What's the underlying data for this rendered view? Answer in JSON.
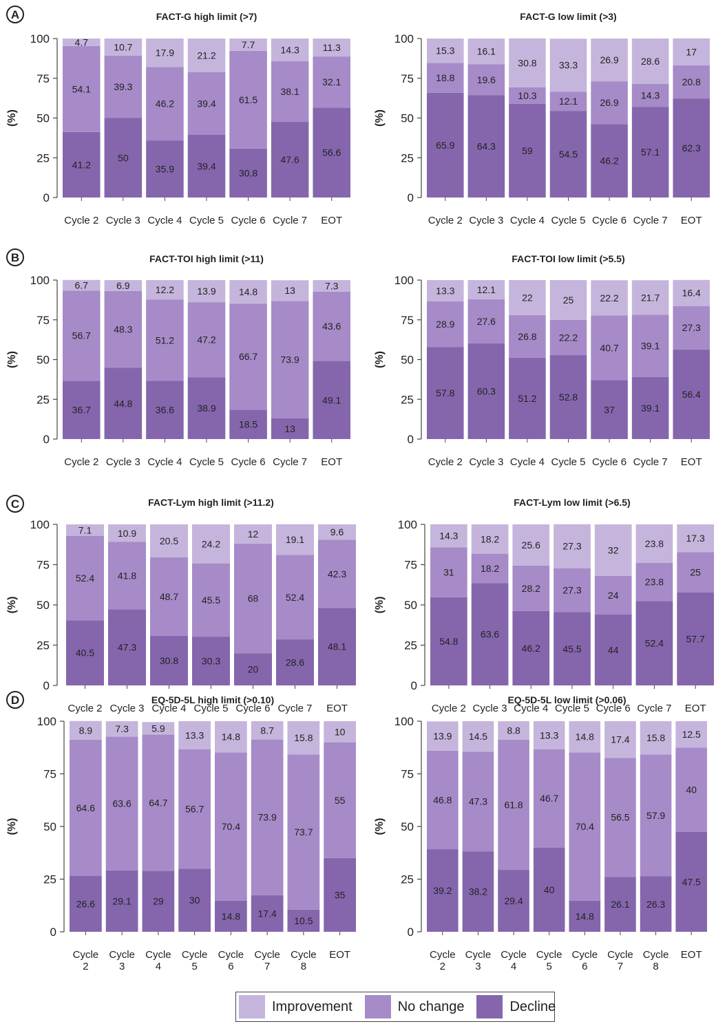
{
  "colors": {
    "improvement": "#c5b5dc",
    "no_change": "#a68bc8",
    "decline": "#8566ad",
    "axis": "#444444",
    "text": "#222222"
  },
  "panels": [
    {
      "label": "A"
    },
    {
      "label": "B"
    },
    {
      "label": "C"
    },
    {
      "label": "D"
    }
  ],
  "legend": {
    "items": [
      {
        "label": "Improvement",
        "color": "#c5b5dc"
      },
      {
        "label": "No change",
        "color": "#a68bc8"
      },
      {
        "label": "Decline",
        "color": "#8566ad"
      }
    ]
  },
  "chart_data": [
    {
      "type": "bar",
      "stacked": true,
      "panel": "A",
      "title": "FACT-G high limit (>7)",
      "ylabel": "(%)",
      "ylim": [
        0,
        100
      ],
      "yticks": [
        0,
        25,
        50,
        75,
        100
      ],
      "categories": [
        "Cycle 2",
        "Cycle 3",
        "Cycle 4",
        "Cycle 5",
        "Cycle 6",
        "Cycle 7",
        "EOT"
      ],
      "series": [
        {
          "name": "Decline",
          "values": [
            41.2,
            50,
            35.9,
            39.4,
            30.8,
            47.6,
            56.6
          ]
        },
        {
          "name": "No change",
          "values": [
            54.1,
            39.3,
            46.2,
            39.4,
            61.5,
            38.1,
            32.1
          ]
        },
        {
          "name": "Improvement",
          "values": [
            4.7,
            10.7,
            17.9,
            21.2,
            7.7,
            14.3,
            11.3
          ]
        }
      ]
    },
    {
      "type": "bar",
      "stacked": true,
      "panel": "A",
      "title": "FACT-G low limit (>3)",
      "ylabel": "(%)",
      "ylim": [
        0,
        100
      ],
      "yticks": [
        0,
        25,
        50,
        75,
        100
      ],
      "categories": [
        "Cycle 2",
        "Cycle 3",
        "Cycle 4",
        "Cycle 5",
        "Cycle 6",
        "Cycle 7",
        "EOT"
      ],
      "series": [
        {
          "name": "Decline",
          "values": [
            65.9,
            64.3,
            59,
            54.5,
            46.2,
            57.1,
            62.3
          ]
        },
        {
          "name": "No change",
          "values": [
            18.8,
            19.6,
            10.3,
            12.1,
            26.9,
            14.3,
            20.8
          ]
        },
        {
          "name": "Improvement",
          "values": [
            15.3,
            16.1,
            30.8,
            33.3,
            26.9,
            28.6,
            17
          ]
        }
      ]
    },
    {
      "type": "bar",
      "stacked": true,
      "panel": "B",
      "title": "FACT-TOI high limit (>11)",
      "ylabel": "(%)",
      "ylim": [
        0,
        100
      ],
      "yticks": [
        0,
        25,
        50,
        75,
        100
      ],
      "categories": [
        "Cycle 2",
        "Cycle 3",
        "Cycle 4",
        "Cycle 5",
        "Cycle 6",
        "Cycle 7",
        "EOT"
      ],
      "series": [
        {
          "name": "Decline",
          "values": [
            36.7,
            44.8,
            36.6,
            38.9,
            18.5,
            13,
            49.1
          ]
        },
        {
          "name": "No change",
          "values": [
            56.7,
            48.3,
            51.2,
            47.2,
            66.7,
            73.9,
            43.6
          ]
        },
        {
          "name": "Improvement",
          "values": [
            6.7,
            6.9,
            12.2,
            13.9,
            14.8,
            13,
            7.3
          ]
        }
      ]
    },
    {
      "type": "bar",
      "stacked": true,
      "panel": "B",
      "title": "FACT-TOI low limit (>5.5)",
      "ylabel": "(%)",
      "ylim": [
        0,
        100
      ],
      "yticks": [
        0,
        25,
        50,
        75,
        100
      ],
      "categories": [
        "Cycle 2",
        "Cycle 3",
        "Cycle 4",
        "Cycle 5",
        "Cycle 6",
        "Cycle 7",
        "EOT"
      ],
      "series": [
        {
          "name": "Decline",
          "values": [
            57.8,
            60.3,
            51.2,
            52.8,
            37,
            39.1,
            56.4
          ]
        },
        {
          "name": "No change",
          "values": [
            28.9,
            27.6,
            26.8,
            22.2,
            40.7,
            39.1,
            27.3
          ]
        },
        {
          "name": "Improvement",
          "values": [
            13.3,
            12.1,
            22,
            25,
            22.2,
            21.7,
            16.4
          ]
        }
      ]
    },
    {
      "type": "bar",
      "stacked": true,
      "panel": "C",
      "title": "FACT-Lym high limit (>11.2)",
      "ylabel": "(%)",
      "ylim": [
        0,
        100
      ],
      "yticks": [
        0,
        25,
        50,
        75,
        100
      ],
      "categories": [
        "Cycle 2",
        "Cycle 3",
        "Cycle 4",
        "Cycle 5",
        "Cycle 6",
        "Cycle 7",
        "EOT"
      ],
      "series": [
        {
          "name": "Decline",
          "values": [
            40.5,
            47.3,
            30.8,
            30.3,
            20,
            28.6,
            48.1
          ]
        },
        {
          "name": "No change",
          "values": [
            52.4,
            41.8,
            48.7,
            45.5,
            68,
            52.4,
            42.3
          ]
        },
        {
          "name": "Improvement",
          "values": [
            7.1,
            10.9,
            20.5,
            24.2,
            12,
            19.1,
            9.6
          ]
        }
      ]
    },
    {
      "type": "bar",
      "stacked": true,
      "panel": "C",
      "title": "FACT-Lym low limit (>6.5)",
      "ylabel": "(%)",
      "ylim": [
        0,
        100
      ],
      "yticks": [
        0,
        25,
        50,
        75,
        100
      ],
      "categories": [
        "Cycle 2",
        "Cycle 3",
        "Cycle 4",
        "Cycle 5",
        "Cycle 6",
        "Cycle 7",
        "EOT"
      ],
      "series": [
        {
          "name": "Decline",
          "values": [
            54.8,
            63.6,
            46.2,
            45.5,
            44,
            52.4,
            57.7
          ]
        },
        {
          "name": "No change",
          "values": [
            31,
            18.2,
            28.2,
            27.3,
            24,
            23.8,
            25
          ]
        },
        {
          "name": "Improvement",
          "values": [
            14.3,
            18.2,
            25.6,
            27.3,
            32,
            23.8,
            17.3
          ]
        }
      ]
    },
    {
      "type": "bar",
      "stacked": true,
      "panel": "D",
      "title": "EQ-5D-5L high limit (>0.10)",
      "ylabel": "(%)",
      "ylim": [
        0,
        100
      ],
      "yticks": [
        0,
        25,
        50,
        75,
        100
      ],
      "categories": [
        "Cycle 2",
        "Cycle 3",
        "Cycle 4",
        "Cycle 5",
        "Cycle 6",
        "Cycle 7",
        "Cycle 8",
        "EOT"
      ],
      "series": [
        {
          "name": "Decline",
          "values": [
            26.6,
            29.1,
            29,
            30,
            14.8,
            17.4,
            10.5,
            35
          ]
        },
        {
          "name": "No change",
          "values": [
            64.6,
            63.6,
            64.7,
            56.7,
            70.4,
            73.9,
            73.7,
            55
          ]
        },
        {
          "name": "Improvement",
          "values": [
            8.9,
            7.3,
            5.9,
            13.3,
            14.8,
            8.7,
            15.8,
            10
          ]
        }
      ]
    },
    {
      "type": "bar",
      "stacked": true,
      "panel": "D",
      "title": "EQ-5D-5L low limit (>0.06)",
      "ylabel": "(%)",
      "ylim": [
        0,
        100
      ],
      "yticks": [
        0,
        25,
        50,
        75,
        100
      ],
      "categories": [
        "Cycle 2",
        "Cycle 3",
        "Cycle 4",
        "Cycle 5",
        "Cycle 6",
        "Cycle 7",
        "Cycle 8",
        "EOT"
      ],
      "series": [
        {
          "name": "Decline",
          "values": [
            39.2,
            38.2,
            29.4,
            40,
            14.8,
            26.1,
            26.3,
            47.5
          ]
        },
        {
          "name": "No change",
          "values": [
            46.8,
            47.3,
            61.8,
            46.7,
            70.4,
            56.5,
            57.9,
            40
          ]
        },
        {
          "name": "Improvement",
          "values": [
            13.9,
            14.5,
            8.8,
            13.3,
            14.8,
            17.4,
            15.8,
            12.5
          ]
        }
      ]
    }
  ]
}
